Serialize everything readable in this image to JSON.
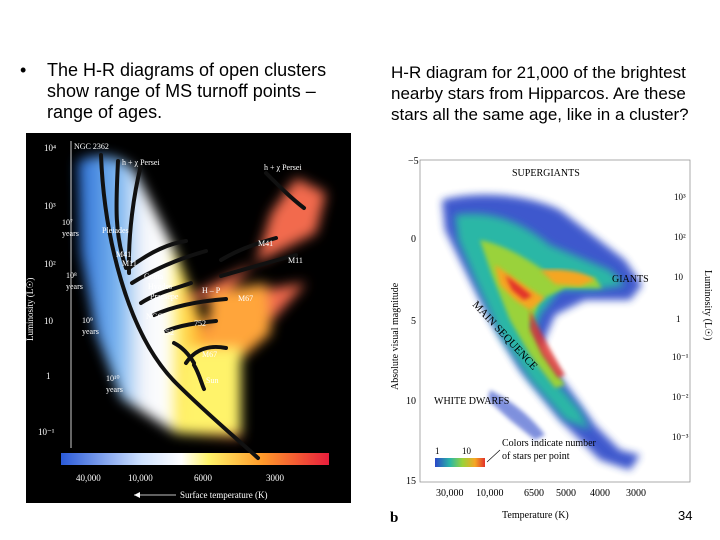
{
  "left": {
    "bullet": "•",
    "text": "The H-R diagrams of open clusters show range of MS turnoff points – range of ages.",
    "figure": {
      "y_ticks": [
        "10⁴",
        "10³",
        "10²",
        "10",
        "1",
        "10⁻¹"
      ],
      "y_label": "Luminosity (L☉)",
      "x_ticks": [
        "40,000",
        "10,000",
        "6000",
        "3000"
      ],
      "x_label": "Surface temperature (K)",
      "labels": {
        "ngc2362": "NGC 2362",
        "hx_persei_1": "h + χ Persei",
        "hx_persei_2": "h + χ Persei",
        "age_1e7": "10⁷",
        "age_1e7_unit": "years",
        "age_1e8": "10⁸",
        "age_1e8_unit": "years",
        "age_1e9": "10⁹",
        "age_1e9_unit": "years",
        "age_1e10": "10¹⁰",
        "age_1e10_unit": "years",
        "pleiades": "Pleiades",
        "m41_a": "M41",
        "m11_a": "M11",
        "m41_b": "M41",
        "m11_b": "M11",
        "coma": "Coma",
        "hyades": "Hyades",
        "praesepe": "Praesepe",
        "hp": "H – P",
        "m67_a": "M67",
        "ngc752": "NGC",
        "n752_a": "752",
        "n752_b": "752",
        "m67_b": "M67",
        "sun": "Sun"
      }
    }
  },
  "right": {
    "text": "H-R diagram for 21,000 of the brightest nearby stars from Hipparcos. Are these stars all the same age, like in a cluster?",
    "figure": {
      "y_ticks": [
        "−5",
        "0",
        "5",
        "10",
        "15"
      ],
      "y_label": "Absolute visual magnitude",
      "y2_ticks": [
        "10³",
        "10²",
        "10",
        "1",
        "10⁻¹",
        "10⁻²",
        "10⁻³"
      ],
      "y2_label": "Luminosity (L☉)",
      "x_ticks": [
        "30,000",
        "10,000",
        "6500",
        "5000",
        "4000",
        "3000"
      ],
      "x_label": "Temperature (K)",
      "panel_label": "b",
      "region_labels": {
        "supergiants": "SUPERGIANTS",
        "giants": "GIANTS",
        "main_sequence": "MAIN SEQUENCE",
        "white_dwarfs": "WHITE DWARFS"
      },
      "colorbar": {
        "min": "1",
        "max": "10"
      },
      "color_note_1": "Colors indicate number",
      "color_note_2": "of stars per point"
    }
  },
  "slide_number": "34"
}
